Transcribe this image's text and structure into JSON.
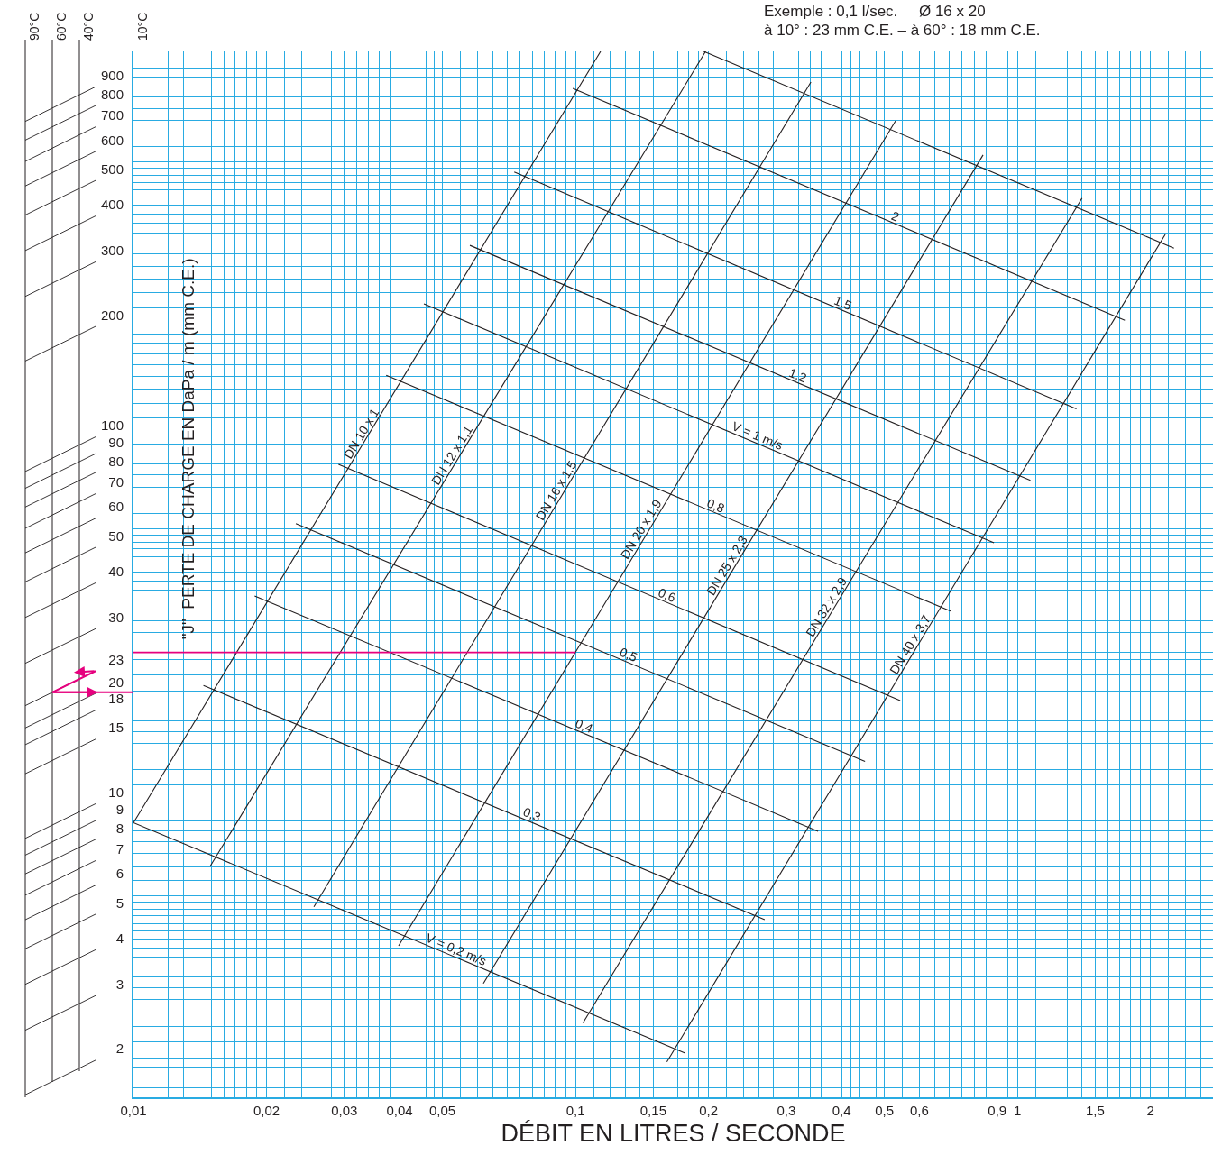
{
  "chart_data": {
    "type": "line",
    "xlabel": "DÉBIT EN LITRES / SECONDE",
    "ylabel": "\"J\"  PERTE DE CHARGE EN DaPa / m (mm C.E.)",
    "annotations": [
      "Exemple : 0,1 l/sec.     Ø 16 x 20",
      "à 10° : 23 mm C.E. – à 60° : 18 mm C.E.",
      "90°C",
      "60°C",
      "40°C",
      "10°C"
    ],
    "log": "xy",
    "grid": true,
    "legend": false,
    "xlim": [
      0.01,
      2.77
    ],
    "ylim": [
      1.41,
      1000
    ],
    "xticks": [
      {
        "value": 0.01,
        "label": "0,01"
      },
      {
        "value": 0.02,
        "label": "0,02"
      },
      {
        "value": 0.03,
        "label": "0,03"
      },
      {
        "value": 0.04,
        "label": "0,04"
      },
      {
        "value": 0.05,
        "label": "0,05"
      },
      {
        "value": 0.1,
        "label": "0,1"
      },
      {
        "value": 0.15,
        "label": "0,15"
      },
      {
        "value": 0.2,
        "label": "0,2"
      },
      {
        "value": 0.3,
        "label": "0,3"
      },
      {
        "value": 0.4,
        "label": "0,4"
      },
      {
        "value": 0.5,
        "label": "0,5"
      },
      {
        "value": 0.6,
        "label": "0,6"
      },
      {
        "value": 0.9,
        "label": "0,9"
      },
      1,
      {
        "value": 1.5,
        "label": "1,5"
      },
      2
    ],
    "yticks": [
      2,
      3,
      4,
      5,
      6,
      7,
      8,
      9,
      10,
      15,
      18,
      20,
      23,
      30,
      40,
      50,
      60,
      70,
      80,
      90,
      100,
      200,
      300,
      400,
      500,
      600,
      700,
      800,
      900
    ],
    "series": [
      {
        "name": "DN 10 x 1",
        "color": "#231f20",
        "x": [
          0.01,
          0.114
        ],
        "values": [
          7.9,
          1000
        ]
      },
      {
        "name": "DN 12 x 1,1",
        "color": "#231f20",
        "x": [
          0.0149,
          0.197
        ],
        "values": [
          6.0,
          1000
        ]
      },
      {
        "name": "DN 16 x 1,5",
        "color": "#231f20",
        "x": [
          0.0256,
          0.341
        ],
        "values": [
          4.66,
          825
        ]
      },
      {
        "name": "DN 20 x 1,9",
        "color": "#231f20",
        "x": [
          0.0398,
          0.53
        ],
        "values": [
          3.65,
          647
        ]
      },
      {
        "name": "DN 25 x 2,3",
        "color": "#231f20",
        "x": [
          0.0619,
          0.836
        ],
        "values": [
          2.88,
          522
        ]
      },
      {
        "name": "DN 32 x 2,9",
        "color": "#231f20",
        "x": [
          0.104,
          1.4
        ],
        "values": [
          2.25,
          398
        ]
      },
      {
        "name": "DN 40 x 3,7",
        "color": "#231f20",
        "x": [
          0.161,
          2.16
        ],
        "values": [
          1.76,
          317
        ]
      },
      {
        "name": "V = 0,2 m/s",
        "color": "#231f20",
        "x": [
          0.01,
          0.177
        ],
        "values": [
          7.9,
          1.86
        ]
      },
      {
        "name": "0,3",
        "color": "#231f20",
        "x": [
          0.0144,
          0.268
        ],
        "values": [
          18.7,
          4.3
        ]
      },
      {
        "name": "0,4",
        "color": "#231f20",
        "x": [
          0.0188,
          0.354
        ],
        "values": [
          32.8,
          7.49
        ]
      },
      {
        "name": "0,5",
        "color": "#231f20",
        "x": [
          0.0233,
          0.452
        ],
        "values": [
          51.6,
          11.6
        ]
      },
      {
        "name": "0,6",
        "color": "#231f20",
        "x": [
          0.0291,
          0.543
        ],
        "values": [
          74.9,
          17.0
        ]
      },
      {
        "name": "0,8",
        "color": "#231f20",
        "x": [
          0.0373,
          0.706
        ],
        "values": [
          131,
          29.8
        ]
      },
      {
        "name": "V = 1 m/s",
        "color": "#231f20",
        "x": [
          0.0454,
          0.885
        ],
        "values": [
          205,
          45.8
        ]
      },
      {
        "name": "1,2",
        "color": "#231f20",
        "x": [
          0.0577,
          1.07
        ],
        "values": [
          296,
          67.7
        ]
      },
      {
        "name": "1,5",
        "color": "#231f20",
        "x": [
          0.0727,
          1.36
        ],
        "values": [
          469,
          106
        ]
      },
      {
        "name": "2",
        "color": "#231f20",
        "x": [
          0.0986,
          1.75
        ],
        "values": [
          793,
          185
        ]
      },
      {
        "color": "#231f20",
        "x": [
          0.195,
          2.26
        ],
        "values": [
          1000,
          291
        ]
      },
      {
        "color": "#e6007e",
        "x": [
          0.01,
          0.1
        ],
        "values": [
          23,
          23
        ]
      }
    ]
  }
}
